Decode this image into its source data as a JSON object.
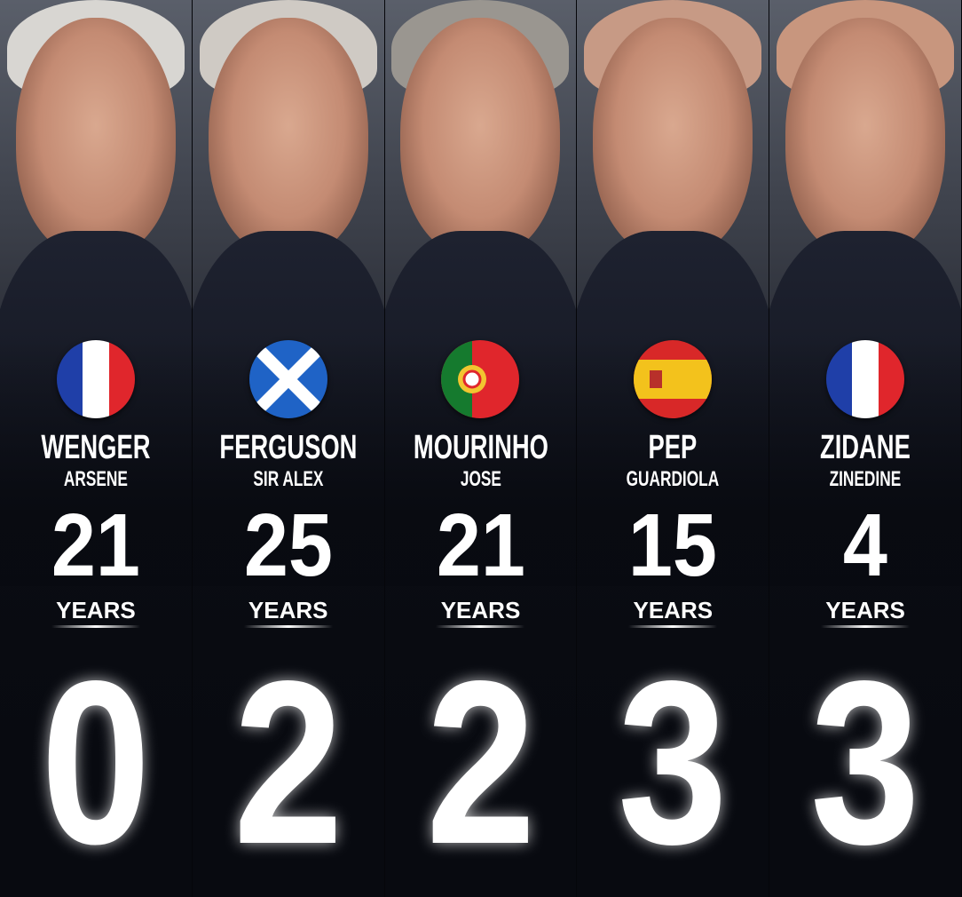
{
  "managers": [
    {
      "last": "WENGER",
      "first": "ARSENE",
      "years": "21",
      "years_label": "YEARS",
      "count": "0",
      "flag": "france",
      "hair": "#d8d6d2"
    },
    {
      "last": "FERGUSON",
      "first": "SIR ALEX",
      "years": "25",
      "years_label": "YEARS",
      "count": "2",
      "flag": "scotland",
      "hair": "#cfcac4"
    },
    {
      "last": "MOURINHO",
      "first": "JOSE",
      "years": "21",
      "years_label": "YEARS",
      "count": "2",
      "flag": "portugal",
      "hair": "#9a9690"
    },
    {
      "last": "PEP",
      "first": "GUARDIOLA",
      "years": "15",
      "years_label": "YEARS",
      "count": "3",
      "flag": "spain",
      "hair": "#c79a85"
    },
    {
      "last": "ZIDANE",
      "first": "ZINEDINE",
      "years": "4",
      "years_label": "YEARS",
      "count": "3",
      "flag": "france",
      "hair": "#c8967e"
    }
  ]
}
